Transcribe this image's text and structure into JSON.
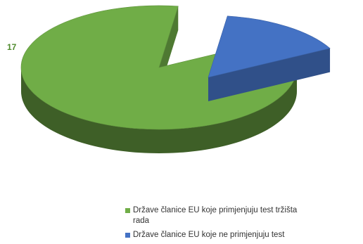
{
  "chart_data": {
    "type": "pie",
    "title": "",
    "series": [
      {
        "name": "Države članice EU koje primjenjuju test tržišta rada",
        "value": 17,
        "color": "#70AD47",
        "label": "17"
      },
      {
        "name": "Države članice EU koje ne primjenjuju test",
        "value": 3,
        "color": "#4472C4",
        "label": ""
      }
    ],
    "legend_position": "bottom-right",
    "exploded": "blue slice",
    "style": "3d"
  }
}
